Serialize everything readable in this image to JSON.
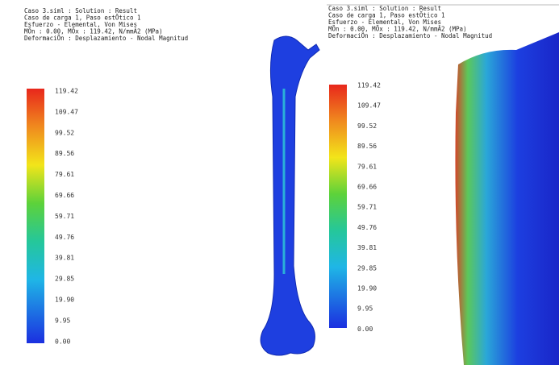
{
  "panels": [
    {
      "header": [
        "Caso 3.siml : Solution : Result",
        "Caso de carga 1, Paso estÕtico 1",
        "Esfuerzo - Elemental, Von Mises",
        "MÕn : 0.00, MÕx : 119.42, N/mmÂ2 (MPa)",
        "DeformaciÕn : Desplazamiento - Nodal Magnitud"
      ],
      "legend": [
        "119.42",
        "109.47",
        "99.52",
        "89.56",
        "79.61",
        "69.66",
        "59.71",
        "49.76",
        "39.81",
        "29.85",
        "19.90",
        "9.95",
        "0.00"
      ]
    },
    {
      "header": [
        "Caso 3.siml : Solution : Result",
        "Caso de carga 1, Paso estÕtico 1",
        "Esfuerzo - Elemental, Von Mises",
        "MÕn : 0.00, MÕx : 119.42, N/mmÂ2 (MPa)",
        "DeformaciÕn : Desplazamiento - Nodal Magnitud"
      ],
      "legend": [
        "119.42",
        "109.47",
        "99.52",
        "89.56",
        "79.61",
        "69.66",
        "59.71",
        "49.76",
        "39.81",
        "29.85",
        "19.90",
        "9.95",
        "0.00"
      ]
    }
  ]
}
